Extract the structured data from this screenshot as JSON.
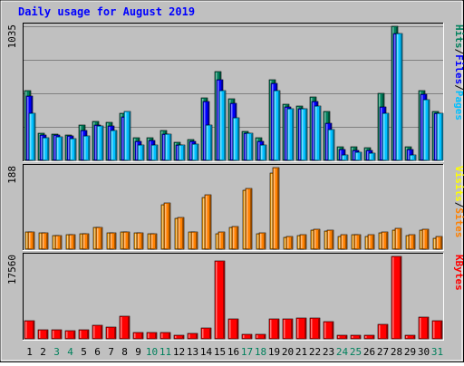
{
  "chart_data": {
    "type": "bar",
    "title": "Daily usage for August 2019",
    "categories": [
      "1",
      "2",
      "3",
      "4",
      "5",
      "6",
      "7",
      "8",
      "9",
      "10",
      "11",
      "12",
      "13",
      "14",
      "15",
      "16",
      "17",
      "18",
      "19",
      "20",
      "21",
      "22",
      "23",
      "24",
      "25",
      "26",
      "27",
      "28",
      "29",
      "30",
      "31"
    ],
    "weekend_days": [
      "3",
      "4",
      "10",
      "11",
      "17",
      "18",
      "24",
      "25",
      "31"
    ],
    "panels": [
      {
        "name": "top",
        "ymax_label": "1035",
        "ymax": 1035,
        "series": [
          {
            "name": "Hits",
            "color": "#00805c",
            "values": [
              536,
              212,
              204,
              196,
              276,
              300,
              292,
              364,
              172,
              172,
              232,
              140,
              164,
              484,
              688,
              476,
              224,
              176,
              620,
              436,
              420,
              492,
              376,
              104,
              104,
              100,
              520,
              1035,
              108,
              540,
              380
            ]
          },
          {
            "name": "Files",
            "color": "#0000ff",
            "values": [
              496,
              196,
              196,
              188,
              228,
              276,
              264,
              336,
              144,
              152,
              204,
              120,
              144,
              456,
              620,
              444,
              208,
              144,
              596,
              416,
              396,
              456,
              288,
              84,
              76,
              80,
              412,
              980,
              84,
              512,
              364
            ]
          },
          {
            "name": "Pages",
            "color": "#00c0ff",
            "values": [
              364,
              176,
              184,
              168,
              192,
              264,
              228,
              376,
              116,
              116,
              200,
              116,
              124,
              276,
              536,
              332,
              208,
              116,
              540,
              396,
              396,
              420,
              236,
              44,
              64,
              56,
              364,
              980,
              40,
              472,
              364
            ]
          }
        ],
        "legend": [
          {
            "label": "Pages",
            "color": "#00c0ff"
          },
          {
            "label": "/",
            "color": "#000000"
          },
          {
            "label": "Files",
            "color": "#0000ff"
          },
          {
            "label": "/",
            "color": "#000000"
          },
          {
            "label": "Hits",
            "color": "#00805c"
          }
        ]
      },
      {
        "name": "middle",
        "ymax_label": "188",
        "ymax": 188,
        "series": [
          {
            "name": "Visits",
            "color": "#ffa000",
            "values": [
              40,
              38,
              32,
              34,
              36,
              50,
              38,
              40,
              38,
              36,
              102,
              72,
              40,
              120,
              36,
              50,
              136,
              36,
              176,
              28,
              32,
              44,
              42,
              30,
              34,
              30,
              38,
              44,
              32,
              44,
              26
            ]
          },
          {
            "name": "Sites",
            "color": "#ff8000",
            "values": [
              40,
              38,
              32,
              34,
              36,
              50,
              38,
              40,
              38,
              36,
              106,
              74,
              40,
              126,
              40,
              52,
              140,
              38,
              188,
              30,
              34,
              46,
              44,
              34,
              34,
              34,
              40,
              48,
              34,
              46,
              30
            ]
          }
        ],
        "legend": [
          {
            "label": "Sites",
            "color": "#ff8000"
          },
          {
            "label": "/",
            "color": "#000000"
          },
          {
            "label": "Visits",
            "color": "#ffff00"
          }
        ]
      },
      {
        "name": "bottom",
        "ymax_label": "17560",
        "ymax": 17560,
        "series": [
          {
            "name": "KBytes",
            "color": "#ff0000",
            "values": [
              3800,
              2000,
              2000,
              1800,
              2000,
              2900,
              2500,
              4800,
              1300,
              1300,
              1300,
              800,
              1200,
              2300,
              16500,
              4200,
              900,
              900,
              4200,
              4200,
              4500,
              4500,
              3700,
              700,
              700,
              700,
              3100,
              17560,
              700,
              4700,
              3900
            ]
          }
        ],
        "legend": [
          {
            "label": "KBytes",
            "color": "#ff0000"
          }
        ]
      }
    ]
  }
}
